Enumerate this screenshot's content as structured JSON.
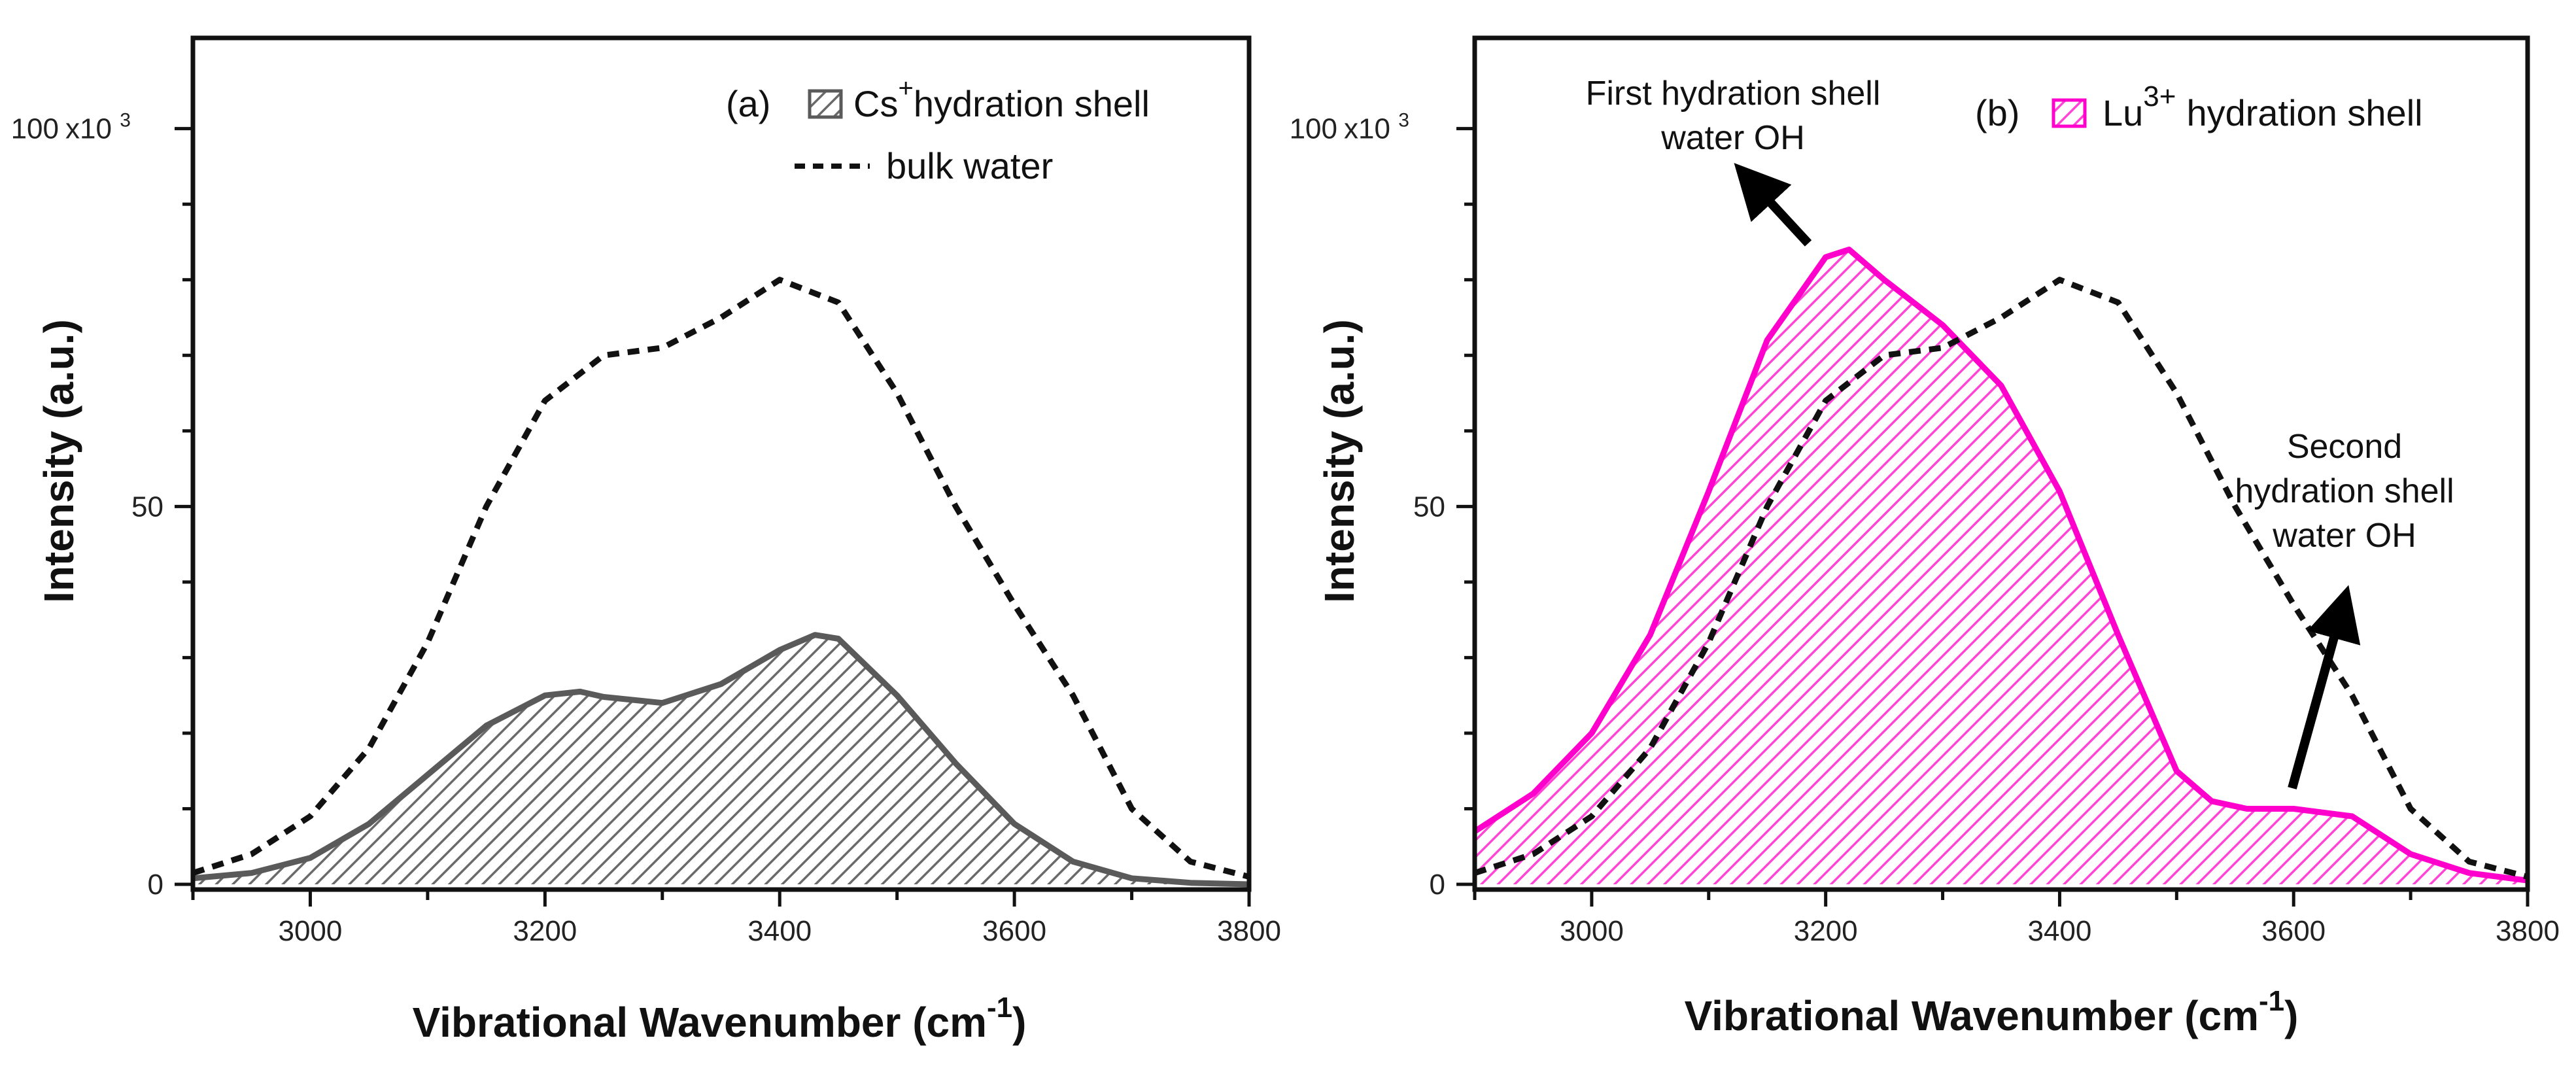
{
  "chart_data": [
    {
      "panel": "(a)",
      "type": "area",
      "xlabel": "Vibrational Wavenumber (cm",
      "xlabel_sup": "-1",
      "xlabel_close": ")",
      "ylabel": "Intensity (a.u.)",
      "xlim": [
        2900,
        3800
      ],
      "ylim": [
        0,
        112
      ],
      "xticks": [
        3000,
        3200,
        3400,
        3600,
        3800
      ],
      "yticks": [
        0,
        50,
        100
      ],
      "ymultiplier": "x10",
      "ymultiplier_exp": "3",
      "legend": {
        "panel_label": "(a)",
        "fill_ion": "Cs",
        "fill_ion_sup": "+",
        "fill_suffix": "hydration shell",
        "line_label": "bulk water"
      },
      "series": [
        {
          "name": "Cs+ hydration shell",
          "style": "hatched-fill",
          "color": "#5a5a5a",
          "x": [
            2900,
            2950,
            3000,
            3050,
            3100,
            3150,
            3200,
            3230,
            3250,
            3300,
            3350,
            3400,
            3430,
            3450,
            3500,
            3550,
            3600,
            3650,
            3700,
            3750,
            3800
          ],
          "values": [
            0.8,
            1.5,
            3.5,
            8,
            14.5,
            21,
            25,
            25.5,
            24.8,
            24,
            26.5,
            31,
            33,
            32.5,
            25,
            16,
            8,
            3,
            0.8,
            0.2,
            0
          ]
        },
        {
          "name": "bulk water",
          "style": "dashed",
          "color": "#111111",
          "x": [
            2900,
            2950,
            3000,
            3050,
            3100,
            3150,
            3200,
            3250,
            3300,
            3350,
            3400,
            3450,
            3500,
            3550,
            3600,
            3650,
            3700,
            3750,
            3800
          ],
          "values": [
            1.5,
            4,
            9,
            18,
            32,
            50,
            64,
            70,
            71,
            75,
            80,
            77,
            65,
            50,
            37,
            25,
            10,
            3,
            1
          ]
        }
      ]
    },
    {
      "panel": "(b)",
      "type": "area",
      "xlabel": "Vibrational Wavenumber (cm",
      "xlabel_sup": "-1",
      "xlabel_close": ")",
      "ylabel": "Intensity (a.u.)",
      "xlim": [
        2900,
        3800
      ],
      "ylim": [
        0,
        112
      ],
      "xticks": [
        3000,
        3200,
        3400,
        3600,
        3800
      ],
      "yticks": [
        0,
        50,
        100
      ],
      "ymultiplier": "x10",
      "ymultiplier_exp": "3",
      "legend": {
        "panel_label": "(b)",
        "fill_ion": "Lu",
        "fill_ion_sup": "3+",
        "fill_suffix": "hydration shell"
      },
      "annotations": [
        {
          "line1": "First hydration shell",
          "line2": "water OH"
        },
        {
          "line1": "Second",
          "line2": "hydration shell",
          "line3": "water OH"
        }
      ],
      "series": [
        {
          "name": "Lu3+ hydration shell",
          "style": "hatched-fill",
          "color": "#ff00cc",
          "x": [
            2900,
            2950,
            3000,
            3050,
            3100,
            3150,
            3200,
            3220,
            3250,
            3300,
            3350,
            3400,
            3450,
            3500,
            3530,
            3560,
            3600,
            3650,
            3700,
            3750,
            3800
          ],
          "values": [
            7,
            12,
            20,
            33,
            52,
            72,
            83,
            84,
            80,
            74,
            66,
            52,
            33,
            15,
            11,
            10,
            10,
            9,
            4,
            1.5,
            0.5
          ]
        },
        {
          "name": "bulk water",
          "style": "dashed",
          "color": "#111111",
          "x": [
            2900,
            2950,
            3000,
            3050,
            3100,
            3150,
            3200,
            3250,
            3300,
            3350,
            3400,
            3450,
            3500,
            3550,
            3600,
            3650,
            3700,
            3750,
            3800
          ],
          "values": [
            1.5,
            4,
            9,
            18,
            32,
            50,
            64,
            70,
            71,
            75,
            80,
            77,
            65,
            50,
            37,
            25,
            10,
            3,
            1
          ]
        }
      ]
    }
  ]
}
